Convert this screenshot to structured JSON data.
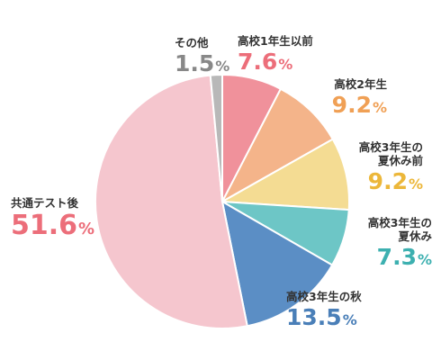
{
  "chart_data": {
    "type": "pie",
    "title": "",
    "start_angle_deg": 0,
    "direction": "clockwise",
    "slices": [
      {
        "label": "高校1年生以前",
        "label_lines": [
          "高校1年生以前"
        ],
        "value": 7.6,
        "display": "7.6",
        "unit": "%",
        "color": "#f0919b",
        "text_color": "#ec6e7a"
      },
      {
        "label": "高校2年生",
        "label_lines": [
          "高校2年生"
        ],
        "value": 9.2,
        "display": "9.2",
        "unit": "%",
        "color": "#f4b48a",
        "text_color": "#f0a055"
      },
      {
        "label": "高校3年生の夏休み前",
        "label_lines": [
          "高校3年生の",
          "夏休み前"
        ],
        "value": 9.2,
        "display": "9.2",
        "unit": "%",
        "color": "#f4dc93",
        "text_color": "#ecb73a"
      },
      {
        "label": "高校3年生の夏休み",
        "label_lines": [
          "高校3年生の",
          "夏休み"
        ],
        "value": 7.3,
        "display": "7.3",
        "unit": "%",
        "color": "#6dc6c6",
        "text_color": "#3db0b0"
      },
      {
        "label": "高校3年生の秋",
        "label_lines": [
          "高校3年生の秋"
        ],
        "value": 13.5,
        "display": "13.5",
        "unit": "%",
        "color": "#5b8ec5",
        "text_color": "#4a7fb8"
      },
      {
        "label": "共通テスト後",
        "label_lines": [
          "共通テスト後"
        ],
        "value": 51.6,
        "display": "51.6",
        "unit": "%",
        "color": "#f5c6ce",
        "text_color": "#ec6e7a"
      },
      {
        "label": "その他",
        "label_lines": [
          "その他"
        ],
        "value": 1.5,
        "display": "1.5",
        "unit": "%",
        "color": "#b8b8b8",
        "text_color": "#888888"
      }
    ]
  },
  "colors": {
    "caption": "#333333",
    "slice_border": "#ffffff"
  }
}
